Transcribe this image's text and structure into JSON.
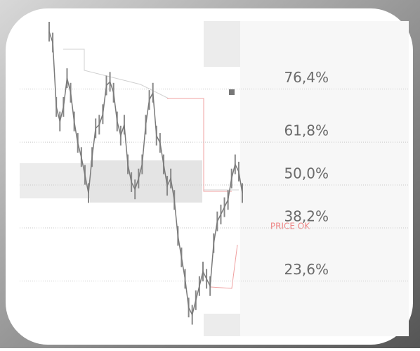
{
  "chart_data": {
    "type": "line",
    "annotation": "PRICE OK",
    "color": "#7a7a7a",
    "grid": true,
    "ylim": [
      8.4,
      95.1
    ],
    "yticks": [
      {
        "value": 76.4,
        "label": "76,4%"
      },
      {
        "value": 61.8,
        "label": "61,8%"
      },
      {
        "value": 50.0,
        "label": "50,0%"
      },
      {
        "value": 38.2,
        "label": "38,2%"
      },
      {
        "value": 23.6,
        "label": "23,6%"
      }
    ],
    "values": [
      92.2,
      89.2,
      71.5,
      67.5,
      71.5,
      79.4,
      75.4,
      67.5,
      61.6,
      57.7,
      52.8,
      47.8,
      57.7,
      65.6,
      66.6,
      69.5,
      77.4,
      78.4,
      75.4,
      67.5,
      63.6,
      66.6,
      55.7,
      50.8,
      48.8,
      51.8,
      55.7,
      66.6,
      73.4,
      75.4,
      63.6,
      61.6,
      55.7,
      49.8,
      51.8,
      45.9,
      36.0,
      30.1,
      24.2,
      16.3,
      14.3,
      18.3,
      22.2,
      26.2,
      24.2,
      22.2,
      34.0,
      40.0,
      41.9,
      43.9,
      45.9,
      51.8,
      55.7,
      53.7,
      47.8
    ]
  }
}
